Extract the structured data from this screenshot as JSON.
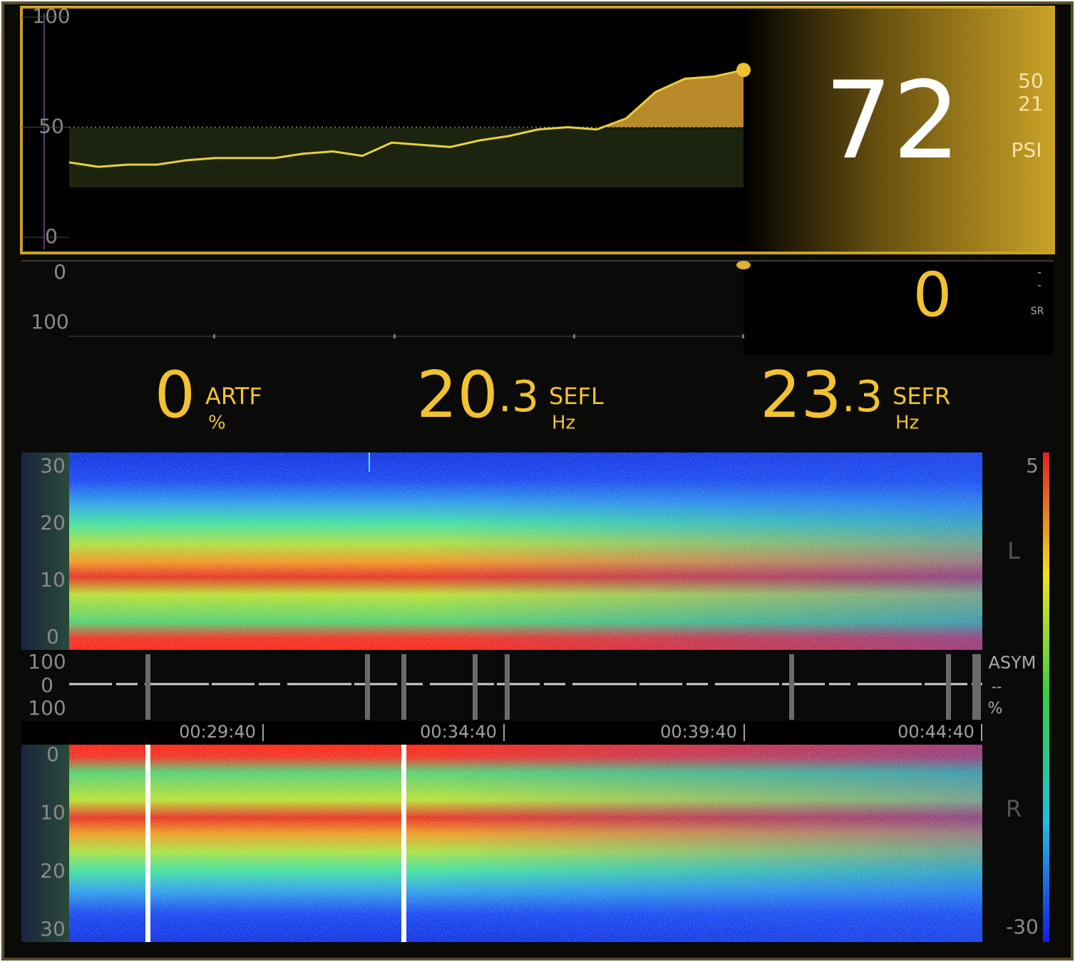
{
  "psi_panel": {
    "ticks": [
      100,
      50,
      0
    ],
    "trend": [
      34,
      32,
      33,
      33,
      35,
      36,
      36,
      36,
      38,
      39,
      37,
      43,
      42,
      41,
      44,
      46,
      49,
      50,
      49,
      54,
      66,
      72,
      73,
      76
    ],
    "value": 72,
    "limits": [
      50,
      21
    ],
    "label": "PSI"
  },
  "sr_panel": {
    "ticks": [
      0,
      100
    ],
    "value": 0,
    "limits": [
      "-",
      "-"
    ],
    "label": "SR"
  },
  "metrics": [
    {
      "value": 0,
      "name": "ARTF",
      "unit": "%"
    },
    {
      "value": 20.3,
      "name": "SEFL",
      "unit": "Hz"
    },
    {
      "value": 23.3,
      "name": "SEFR",
      "unit": "Hz"
    }
  ],
  "dsa_left": {
    "ticks": [
      30,
      20,
      10,
      0
    ],
    "label": "L"
  },
  "asym": {
    "ticks": [
      100,
      0,
      100
    ],
    "label": "ASYM",
    "center": "--",
    "unit": "%"
  },
  "time_axis": [
    "00:29:40",
    "00:34:40",
    "00:39:40",
    "00:44:40"
  ],
  "dsa_right": {
    "ticks": [
      0,
      10,
      20,
      30
    ],
    "label": "R"
  },
  "color_scale": [
    5,
    -30
  ]
}
